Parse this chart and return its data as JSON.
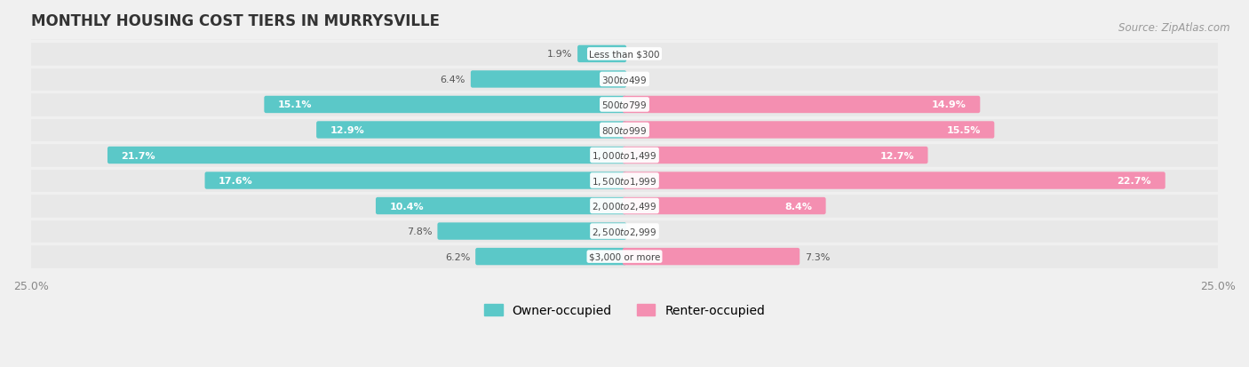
{
  "title": "MONTHLY HOUSING COST TIERS IN MURRYSVILLE",
  "source": "Source: ZipAtlas.com",
  "categories": [
    "Less than $300",
    "$300 to $499",
    "$500 to $799",
    "$800 to $999",
    "$1,000 to $1,499",
    "$1,500 to $1,999",
    "$2,000 to $2,499",
    "$2,500 to $2,999",
    "$3,000 or more"
  ],
  "owner_values": [
    1.9,
    6.4,
    15.1,
    12.9,
    21.7,
    17.6,
    10.4,
    7.8,
    6.2
  ],
  "renter_values": [
    0.0,
    0.0,
    14.9,
    15.5,
    12.7,
    22.7,
    8.4,
    0.0,
    7.3
  ],
  "owner_color": "#5bc8c8",
  "renter_color": "#f48fb1",
  "axis_max": 25.0,
  "background_color": "#f0f0f0",
  "row_bg_color": "#e8e8e8",
  "label_bg": "#ffffff",
  "title_fontsize": 12,
  "tick_fontsize": 9,
  "legend_fontsize": 10,
  "source_fontsize": 8.5
}
